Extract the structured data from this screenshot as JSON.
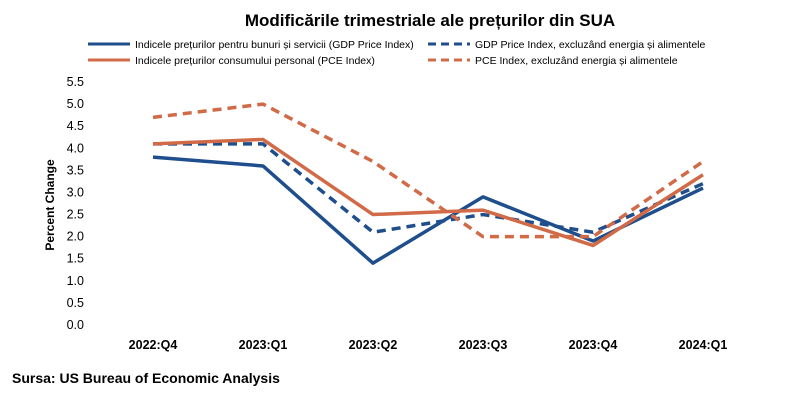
{
  "chart_data": {
    "type": "line",
    "title": "Modificările trimestriale ale prețurilor din SUA",
    "xlabel": "",
    "ylabel": "Percent Change",
    "categories": [
      "2022:Q4",
      "2023:Q1",
      "2023:Q2",
      "2023:Q3",
      "2023:Q4",
      "2024:Q1"
    ],
    "ylim": [
      0,
      5.5
    ],
    "yticks": [
      "0.0",
      "0.5",
      "1.0",
      "1.5",
      "2.0",
      "2.5",
      "3.0",
      "3.5",
      "4.0",
      "4.5",
      "5.0",
      "5.5"
    ],
    "grid": false,
    "legend_position": "top",
    "series": [
      {
        "name": "Indicele prețurilor pentru bunuri și servicii (GDP Price Index)",
        "color": "#1f4e8c",
        "dash": "solid",
        "values": [
          3.8,
          3.6,
          1.4,
          2.9,
          1.9,
          3.1
        ]
      },
      {
        "name": "GDP Price Index, excluzând energia și alimentele",
        "color": "#1f4e8c",
        "dash": "dashed",
        "values": [
          4.1,
          4.1,
          2.1,
          2.5,
          2.1,
          3.2
        ]
      },
      {
        "name": "Indicele prețurilor consumului personal (PCE Index)",
        "color": "#d06a47",
        "dash": "solid",
        "values": [
          4.1,
          4.2,
          2.5,
          2.6,
          1.8,
          3.4
        ]
      },
      {
        "name": "PCE Index, excluzând energia și alimentele",
        "color": "#d06a47",
        "dash": "dashed",
        "values": [
          4.7,
          5.0,
          3.7,
          2.0,
          2.0,
          3.7
        ]
      }
    ]
  },
  "source": "Sursa: US Bureau of Economic Analysis"
}
